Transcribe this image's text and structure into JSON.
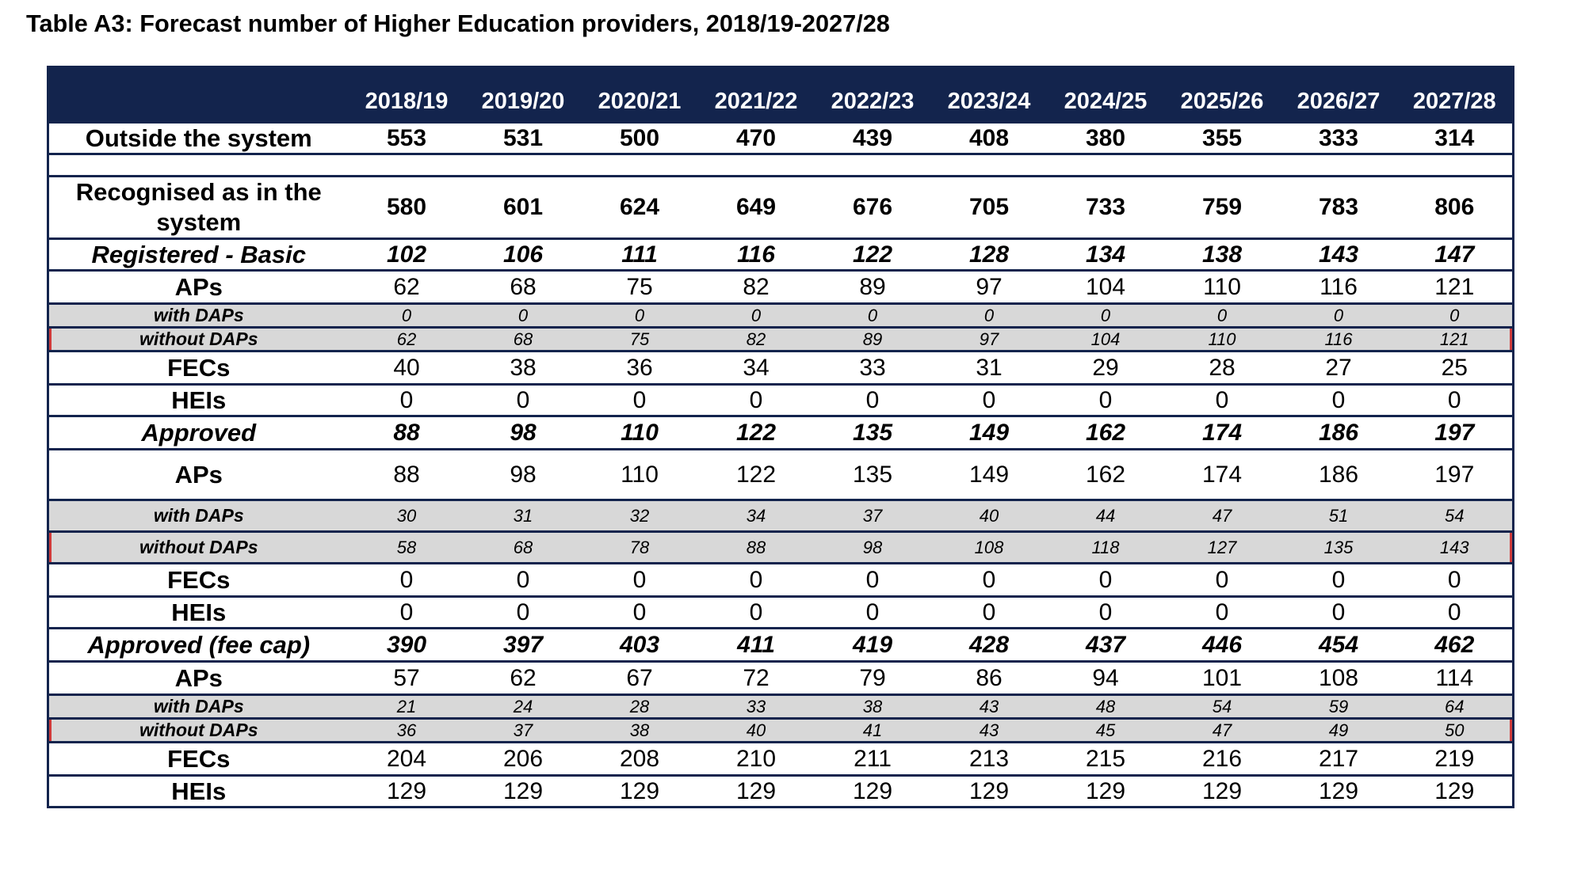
{
  "title": "Table A3: Forecast number of Higher Education providers, 2018/19-2027/28",
  "years": [
    "2018/19",
    "2019/20",
    "2020/21",
    "2021/22",
    "2022/23",
    "2023/24",
    "2024/25",
    "2025/26",
    "2026/27",
    "2027/28"
  ],
  "rows": [
    {
      "label": "Outside the system",
      "style": "bold",
      "values": [
        "553",
        "531",
        "500",
        "470",
        "439",
        "408",
        "380",
        "355",
        "333",
        "314"
      ]
    },
    {
      "label": "",
      "style": "blank",
      "values": [
        "",
        "",
        "",
        "",
        "",
        "",
        "",
        "",
        "",
        ""
      ]
    },
    {
      "label": "Recognised as in the system",
      "style": "bold wrap",
      "values": [
        "580",
        "601",
        "624",
        "649",
        "676",
        "705",
        "733",
        "759",
        "783",
        "806"
      ]
    },
    {
      "label": "Registered - Basic",
      "style": "boldit",
      "values": [
        "102",
        "106",
        "111",
        "116",
        "122",
        "128",
        "134",
        "138",
        "143",
        "147"
      ]
    },
    {
      "label": "APs",
      "style": "normal",
      "values": [
        "62",
        "68",
        "75",
        "82",
        "89",
        "97",
        "104",
        "110",
        "116",
        "121"
      ]
    },
    {
      "label": "with DAPs",
      "style": "sub",
      "values": [
        "0",
        "0",
        "0",
        "0",
        "0",
        "0",
        "0",
        "0",
        "0",
        "0"
      ]
    },
    {
      "label": "without DAPs",
      "style": "sub redl",
      "values": [
        "62",
        "68",
        "75",
        "82",
        "89",
        "97",
        "104",
        "110",
        "116",
        "121"
      ]
    },
    {
      "label": "FECs",
      "style": "normal",
      "values": [
        "40",
        "38",
        "36",
        "34",
        "33",
        "31",
        "29",
        "28",
        "27",
        "25"
      ]
    },
    {
      "label": "HEIs",
      "style": "normal",
      "values": [
        "0",
        "0",
        "0",
        "0",
        "0",
        "0",
        "0",
        "0",
        "0",
        "0"
      ]
    },
    {
      "label": "Approved",
      "style": "boldit",
      "values": [
        "88",
        "98",
        "110",
        "122",
        "135",
        "149",
        "162",
        "174",
        "186",
        "197"
      ]
    },
    {
      "label": "APs",
      "style": "normal",
      "values": [
        "88",
        "98",
        "110",
        "122",
        "135",
        "149",
        "162",
        "174",
        "186",
        "197"
      ]
    },
    {
      "label": "with DAPs",
      "style": "sub",
      "values": [
        "30",
        "31",
        "32",
        "34",
        "37",
        "40",
        "44",
        "47",
        "51",
        "54"
      ]
    },
    {
      "label": "without DAPs",
      "style": "sub redl",
      "values": [
        "58",
        "68",
        "78",
        "88",
        "98",
        "108",
        "118",
        "127",
        "135",
        "143"
      ]
    },
    {
      "label": "FECs",
      "style": "normal",
      "values": [
        "0",
        "0",
        "0",
        "0",
        "0",
        "0",
        "0",
        "0",
        "0",
        "0"
      ]
    },
    {
      "label": "HEIs",
      "style": "normal",
      "values": [
        "0",
        "0",
        "0",
        "0",
        "0",
        "0",
        "0",
        "0",
        "0",
        "0"
      ]
    },
    {
      "label": "Approved (fee cap)",
      "style": "boldit",
      "values": [
        "390",
        "397",
        "403",
        "411",
        "419",
        "428",
        "437",
        "446",
        "454",
        "462"
      ]
    },
    {
      "label": "APs",
      "style": "normal",
      "values": [
        "57",
        "62",
        "67",
        "72",
        "79",
        "86",
        "94",
        "101",
        "108",
        "114"
      ]
    },
    {
      "label": "with DAPs",
      "style": "sub",
      "values": [
        "21",
        "24",
        "28",
        "33",
        "38",
        "43",
        "48",
        "54",
        "59",
        "64"
      ]
    },
    {
      "label": "without DAPs",
      "style": "sub redl",
      "values": [
        "36",
        "37",
        "38",
        "40",
        "41",
        "43",
        "45",
        "47",
        "49",
        "50"
      ]
    },
    {
      "label": "FECs",
      "style": "normal",
      "values": [
        "204",
        "206",
        "208",
        "210",
        "211",
        "213",
        "215",
        "216",
        "217",
        "219"
      ]
    },
    {
      "label": "HEIs",
      "style": "normal",
      "values": [
        "129",
        "129",
        "129",
        "129",
        "129",
        "129",
        "129",
        "129",
        "129",
        "129"
      ]
    }
  ]
}
